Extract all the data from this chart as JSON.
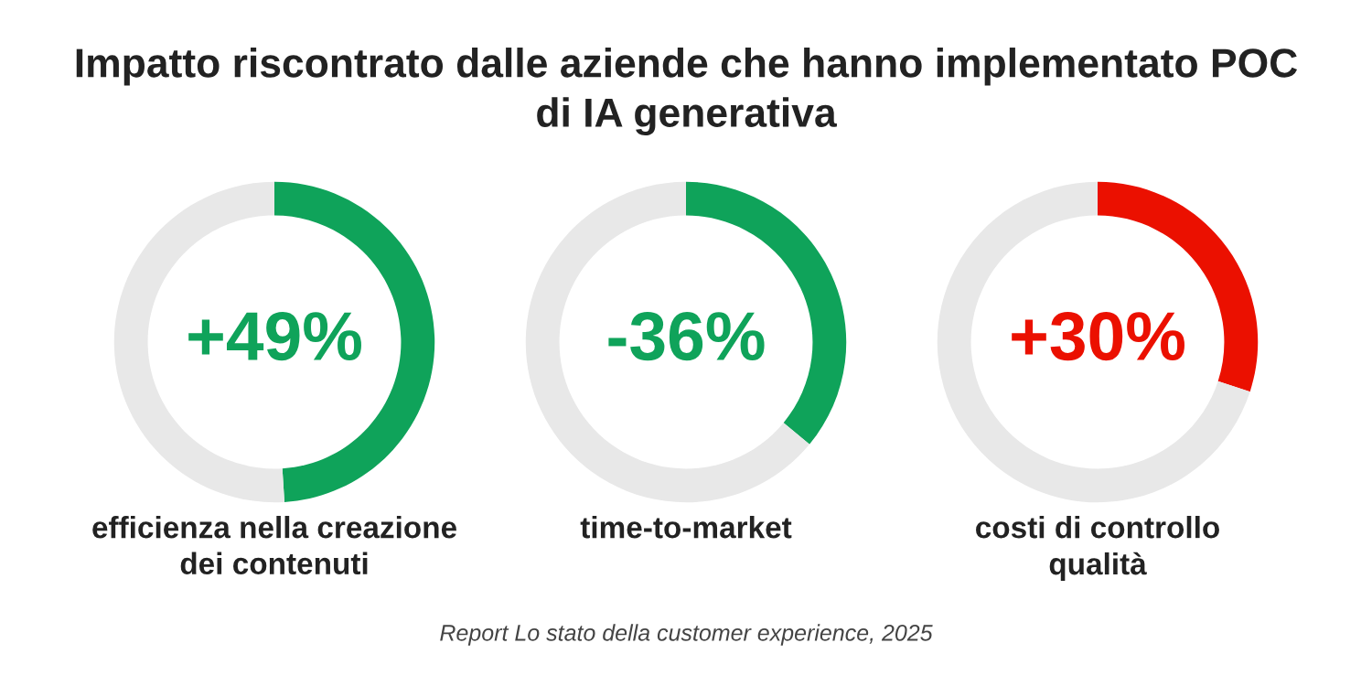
{
  "chart_data": [
    {
      "type": "donut",
      "title": "Impatto riscontrato dalle aziende che hanno implementato POC\ndi IA generativa",
      "categories": [
        null,
        null
      ],
      "values": [
        49,
        51
      ],
      "colors": [
        "#0fa35a",
        "#e8e8e8"
      ],
      "annotations": [
        "+49%"
      ],
      "xlabel": "efficienza nella creazione\ndei contenuti"
    },
    {
      "type": "donut",
      "categories": [
        null,
        null
      ],
      "values": [
        36,
        64
      ],
      "colors": [
        "#0fa35a",
        "#e8e8e8"
      ],
      "annotations": [
        "-36%",
        "Report Lo stato della customer experience, 2025"
      ],
      "xlabel": "time-to-market"
    },
    {
      "type": "donut",
      "categories": [
        null,
        null
      ],
      "values": [
        30,
        70
      ],
      "colors": [
        "#eb1000",
        "#e8e8e8"
      ],
      "annotations": [
        "+30%"
      ],
      "xlabel": "costi di controllo\nqualità"
    }
  ]
}
